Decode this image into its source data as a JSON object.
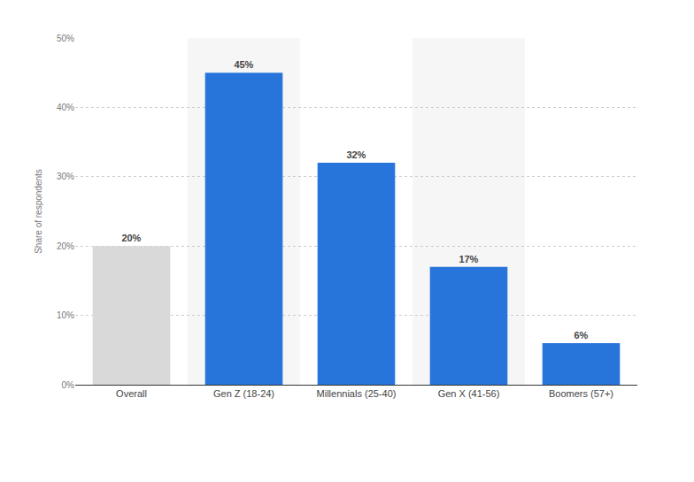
{
  "chart_data": {
    "type": "bar",
    "y_label": "Share of respondents",
    "categories": [
      "Overall",
      "Gen Z (18-24)",
      "Millennials (25-40)",
      "Gen X (41-56)",
      "Boomers (57+)"
    ],
    "values": [
      20,
      45,
      32,
      17,
      6
    ],
    "value_labels": [
      "20%",
      "45%",
      "32%",
      "17%",
      "6%"
    ],
    "colors": [
      "#d9d9d9",
      "#2775db",
      "#2775db",
      "#2775db",
      "#2775db"
    ],
    "ylim": [
      0,
      50
    ],
    "yticks": [
      {
        "value": 0,
        "label": "0%"
      },
      {
        "value": 10,
        "label": "10%"
      },
      {
        "value": 20,
        "label": "20%"
      },
      {
        "value": 30,
        "label": "30%"
      },
      {
        "value": 40,
        "label": "40%"
      },
      {
        "value": 50,
        "label": "50%"
      }
    ],
    "grid": true,
    "data_labels": true
  }
}
